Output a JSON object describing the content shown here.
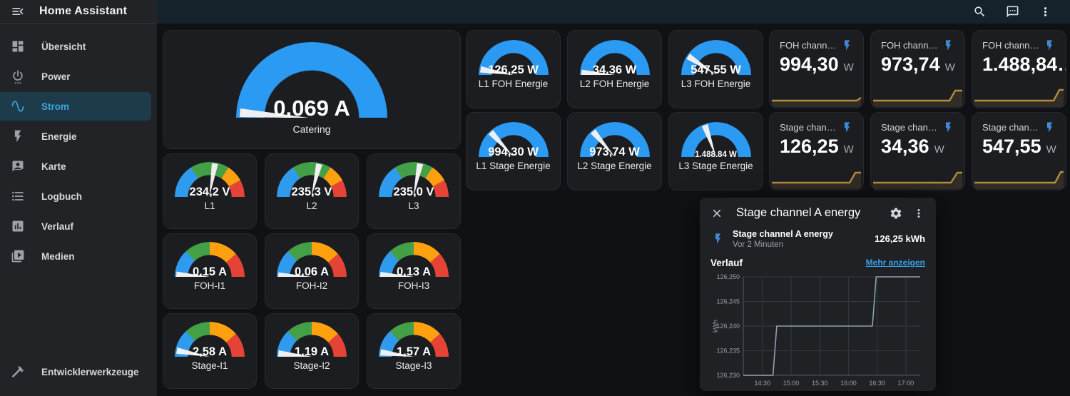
{
  "app": {
    "title": "Home Assistant"
  },
  "topbar": {
    "icons": [
      "magnify",
      "assist",
      "dots-vertical"
    ]
  },
  "sidebar": {
    "items": [
      {
        "label": "Übersicht",
        "icon": "view-dashboard",
        "active": false
      },
      {
        "label": "Power",
        "icon": "power-settings",
        "active": false
      },
      {
        "label": "Strom",
        "icon": "sine-wave",
        "active": true
      },
      {
        "label": "Energie",
        "icon": "flash",
        "active": false
      },
      {
        "label": "Karte",
        "icon": "message-account",
        "active": false
      },
      {
        "label": "Logbuch",
        "icon": "list-bulleted",
        "active": false
      },
      {
        "label": "Verlauf",
        "icon": "chart-box",
        "active": false
      },
      {
        "label": "Medien",
        "icon": "play-box",
        "active": false
      }
    ],
    "footer_item": {
      "label": "Entwicklerwerkzeuge",
      "icon": "hammer"
    }
  },
  "colors": {
    "accent": "#3aa7dd",
    "gauge_blue": "#2b9af3",
    "severity_blue": "#2f9bef",
    "severity_green": "#43a047",
    "severity_amber": "#ffa00f",
    "severity_red": "#e64337",
    "spark_line": "#b28c3f",
    "chart_line": "#8ca3b4",
    "link_blue": "#36a1e8",
    "bolt_blue": "#4189d6"
  },
  "gauges": {
    "catering": {
      "value": "0,069 A",
      "label": "Catering",
      "needle_deg": 4,
      "segments": [
        {
          "color": "#2b9af3",
          "to": 100
        }
      ]
    },
    "voltage_segments": [
      {
        "color": "#2f9bef",
        "to": 32
      },
      {
        "color": "#43a047",
        "to": 68
      },
      {
        "color": "#ffa00f",
        "to": 84
      },
      {
        "color": "#e64337",
        "to": 100
      }
    ],
    "current_segments": [
      {
        "color": "#2f9bef",
        "to": 26
      },
      {
        "color": "#43a047",
        "to": 50
      },
      {
        "color": "#ffa00f",
        "to": 77
      },
      {
        "color": "#e64337",
        "to": 100
      }
    ],
    "blue_segments": [
      {
        "color": "#2b9af3",
        "to": 100
      }
    ],
    "voltage": [
      {
        "value": "234,2 V",
        "label": "L1",
        "needle_deg": 99
      },
      {
        "value": "235,3 V",
        "label": "L2",
        "needle_deg": 103
      },
      {
        "value": "235,0 V",
        "label": "L3",
        "needle_deg": 101
      }
    ],
    "foh_current": [
      {
        "value": "0,15 A",
        "label": "FOH-I1",
        "needle_deg": 3
      },
      {
        "value": "0,06 A",
        "label": "FOH-I2",
        "needle_deg": 1.5
      },
      {
        "value": "0,13 A",
        "label": "FOH-I3",
        "needle_deg": 2.5
      }
    ],
    "stage_current": [
      {
        "value": "2,58 A",
        "label": "Stage-I1",
        "needle_deg": 10
      },
      {
        "value": "1,19 A",
        "label": "Stage-I2",
        "needle_deg": 5
      },
      {
        "value": "1,57 A",
        "label": "Stage-I3",
        "needle_deg": 7
      }
    ],
    "foh_energy": [
      {
        "value": "126,25 W",
        "label": "L1 FOH Energie",
        "needle_deg": 9
      },
      {
        "value": "34,36 W",
        "label": "L2 FOH Energie",
        "needle_deg": 3
      },
      {
        "value": "547,55 W",
        "label": "L3 FOH Energie",
        "needle_deg": 33
      }
    ],
    "stage_energy": [
      {
        "value": "994,30 W",
        "label": "L1 Stage Energie",
        "needle_deg": 47
      },
      {
        "value": "973,74 W",
        "label": "L2 Stage Energie",
        "needle_deg": 49
      },
      {
        "value": "1.488,84 W",
        "label": "L3 Stage Energie",
        "needle_deg": 70
      }
    ]
  },
  "sensors": {
    "top": [
      {
        "title": "FOH chann…",
        "value": "994,30",
        "unit": "W",
        "spark": [
          [
            2,
            21
          ],
          [
            122,
            21
          ],
          [
            128,
            17
          ]
        ]
      },
      {
        "title": "FOH chann…",
        "value": "973,74",
        "unit": "W",
        "spark": [
          [
            2,
            21
          ],
          [
            110,
            21
          ],
          [
            118,
            7
          ],
          [
            128,
            7
          ]
        ]
      },
      {
        "title": "FOH chann…",
        "value": "1.488,84…",
        "unit": "",
        "spark": [
          [
            2,
            21
          ],
          [
            114,
            21
          ],
          [
            122,
            6
          ],
          [
            128,
            6
          ]
        ]
      }
    ],
    "bottom": [
      {
        "title": "Stage chan…",
        "value": "126,25",
        "unit": "W",
        "spark": [
          [
            2,
            21
          ],
          [
            112,
            21
          ],
          [
            120,
            7
          ],
          [
            128,
            7
          ]
        ]
      },
      {
        "title": "Stage chan…",
        "value": "34,36",
        "unit": "W",
        "spark": [
          [
            2,
            21
          ],
          [
            112,
            21
          ],
          [
            121,
            7
          ],
          [
            128,
            7
          ]
        ]
      },
      {
        "title": "Stage chan…",
        "value": "547,55",
        "unit": "W",
        "spark": [
          [
            2,
            21
          ],
          [
            116,
            21
          ],
          [
            124,
            6
          ],
          [
            128,
            6
          ]
        ]
      }
    ]
  },
  "dialog": {
    "title": "Stage channel A energy",
    "entity_name": "Stage channel A energy",
    "entity_time": "Vor 2 Minuten",
    "entity_value": "126,25 kWh",
    "section_label": "Verlauf",
    "more_link": "Mehr anzeigen",
    "chart_data": {
      "type": "line",
      "ylabel": "kWh",
      "x_ticks": [
        "14:30",
        "15:00",
        "15:30",
        "16:00",
        "16:30",
        "17:00"
      ],
      "y_ticks": [
        "126,250",
        "126,245",
        "126,240",
        "126,235",
        "126,230"
      ],
      "x_range": [
        "14:10",
        "17:15"
      ],
      "y_range": [
        126.23,
        126.25
      ],
      "grid": true,
      "series": [
        {
          "name": "Stage channel A energy",
          "points": [
            [
              "14:10",
              126.23
            ],
            [
              "14:41",
              126.23
            ],
            [
              "14:45",
              126.24
            ],
            [
              "16:25",
              126.24
            ],
            [
              "16:29",
              126.25
            ],
            [
              "17:15",
              126.25
            ]
          ]
        }
      ]
    }
  }
}
